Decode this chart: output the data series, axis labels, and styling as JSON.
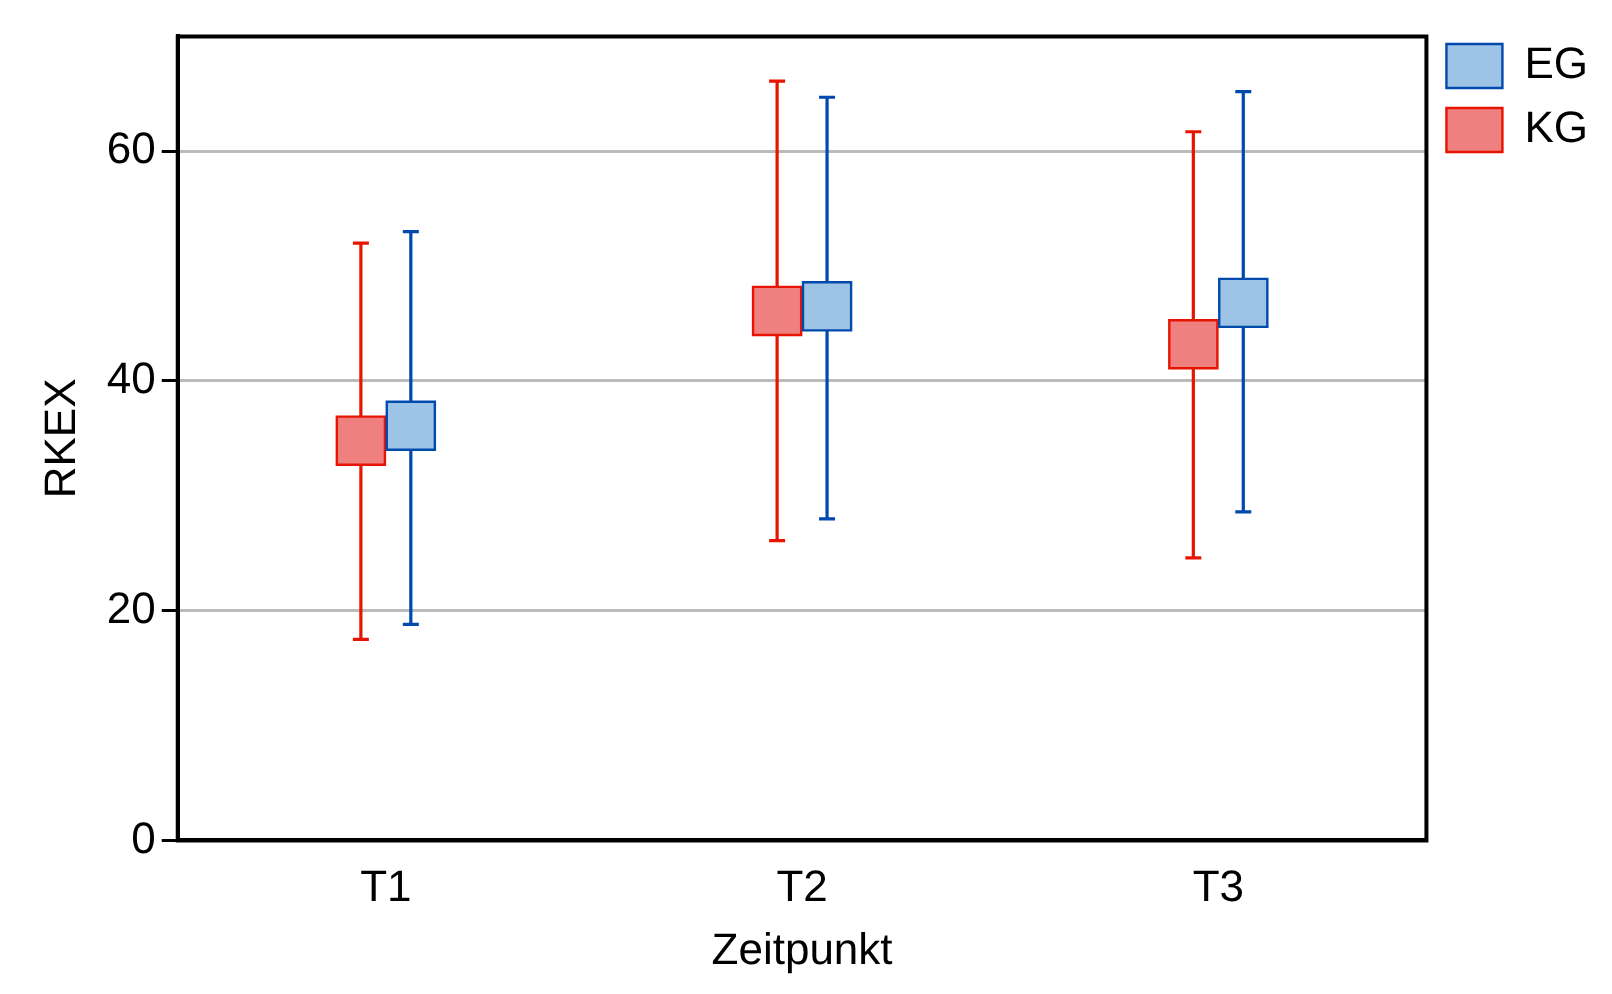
{
  "chart_data": {
    "type": "scatter",
    "xlabel": "Zeitpunkt",
    "ylabel": "RKEX",
    "categories": [
      "T1",
      "T2",
      "T3"
    ],
    "series": [
      {
        "name": "EG",
        "color": "#9dc3e6",
        "values": [
          36.1,
          46.5,
          46.8
        ],
        "errors": [
          [
            18.8,
            53.0
          ],
          [
            28.0,
            64.7
          ],
          [
            28.6,
            65.2
          ]
        ]
      },
      {
        "name": "KG",
        "color": "#f08080",
        "values": [
          34.8,
          46.1,
          43.2
        ],
        "errors": [
          [
            17.5,
            52.0
          ],
          [
            26.1,
            66.1
          ],
          [
            24.6,
            61.7
          ]
        ]
      }
    ],
    "ylim": [
      0,
      70
    ],
    "yticks": [
      0,
      20,
      40,
      60
    ],
    "grid": "y",
    "legend": "top right",
    "marker": "square"
  }
}
